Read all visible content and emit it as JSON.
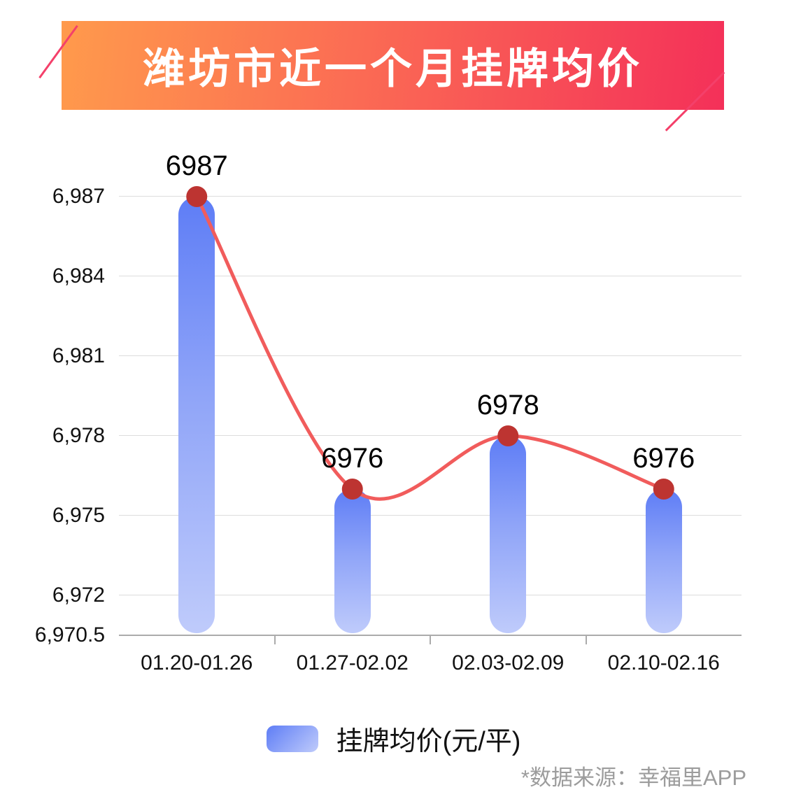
{
  "title": "潍坊市近一个月挂牌均价",
  "legend": {
    "label": "挂牌均价(元/平)"
  },
  "source_note": "*数据来源：幸福里APP",
  "colors": {
    "banner_gradient_start": "#ff9a4c",
    "banner_gradient_end": "#f43059",
    "deco_line": "#f4406a",
    "bar_top": "#5e7df6",
    "bar_bottom": "#bfcbfb",
    "line": "#f15c5c",
    "dot": "#bd3431",
    "axis_text": "#111111",
    "grid": "#dcdcdc",
    "source_text": "#9c9c9c"
  },
  "chart_data": {
    "type": "bar",
    "overlay": "line",
    "title": "潍坊市近一个月挂牌均价",
    "categories": [
      "01.20-01.26",
      "01.27-02.02",
      "02.03-02.09",
      "02.10-02.16"
    ],
    "series": [
      {
        "name": "挂牌均价(元/平)",
        "values": [
          6987,
          6976,
          6978,
          6976
        ]
      }
    ],
    "data_labels": [
      "6987",
      "6976",
      "6978",
      "6976"
    ],
    "xlabel": "",
    "ylabel": "",
    "ylim": [
      6970.5,
      6987
    ],
    "yticks": [
      6970.5,
      6972,
      6975,
      6978,
      6981,
      6984,
      6987
    ],
    "ytick_labels": [
      "6,970.5",
      "6,972",
      "6,975",
      "6,978",
      "6,981",
      "6,984",
      "6,987"
    ],
    "grid": true,
    "legend_position": "bottom"
  }
}
